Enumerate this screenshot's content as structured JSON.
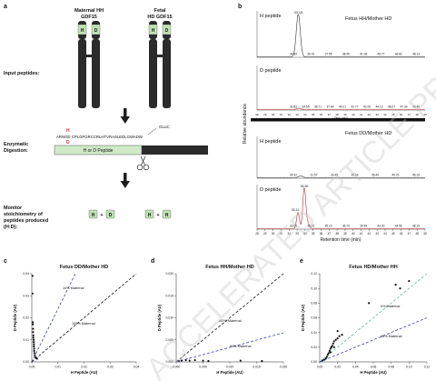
{
  "panels": {
    "a": {
      "label": "a",
      "maternal_title": [
        "Maternal HH",
        "GDF15"
      ],
      "fetal_title": [
        "Fetal",
        "HD GDF15"
      ],
      "chain_left_letters": [
        "H",
        "D"
      ],
      "chain_right_letters": [
        "H",
        "D"
      ],
      "input_label": "Input peptides:",
      "digestion_label": [
        "Enzymatic",
        "Digestion:"
      ],
      "gluc_label": "GLuC",
      "seq_marker_top": "H",
      "seq_marker_bottom": "D",
      "sequence": "ARNGD CPLGPGRCCRLHTVRASLEDLGWADW",
      "peptide_box_label": "H or D Peptide",
      "monitor_label": [
        "Monitor",
        "stoichiometry of",
        "peptides produced",
        "(H:D):"
      ],
      "badge1": [
        "H",
        "+",
        "D"
      ],
      "badge2": [
        "H",
        "+",
        "H"
      ]
    },
    "b": {
      "label": "b",
      "title_top": "Fetus HH/Mother HD",
      "title_bottom": "Fetus DD/Mother HD",
      "ylabel": "Relative abundance",
      "xlabel": "Retention time (min)",
      "trace_labels": [
        "H peptide",
        "D peptide",
        "H peptide",
        "D peptide"
      ],
      "peak_label_1": "33.15",
      "peak_label_4a": "33.90",
      "peak_label_4b": "33.12",
      "small_labels_1": [
        "34.00",
        "36.01",
        "37.55",
        "38.46",
        "41.06",
        "45.77",
        "46.82",
        "48.13"
      ],
      "small_labels_2": [
        "32.82",
        "34.55",
        "36.71",
        "37.64",
        "40.21",
        "42.77",
        "42.26",
        "44.12",
        "46.07",
        "47.34",
        "49.46"
      ],
      "small_labels_3": [
        "30.32",
        "31.57",
        "33.45",
        "35.64",
        "36.40",
        "40.31",
        "45.16"
      ],
      "small_labels_4": [
        "30.00",
        "32.21",
        "35.10",
        "36.70",
        "39.49",
        "43.20",
        "44.56",
        "48.19"
      ],
      "x_ticks": [
        "28",
        "29",
        "30",
        "31",
        "32",
        "33",
        "34",
        "35",
        "36",
        "37",
        "38",
        "39",
        "40",
        "41",
        "42",
        "43",
        "44",
        "45",
        "46",
        "47",
        "48",
        "49"
      ],
      "time_axis_unit": "Time (min)"
    },
    "c": {
      "label": "c",
      "title": "Fetus DD/Mother HD",
      "xlabel": "H Peptide (AU)",
      "ylabel": "D Peptide (AU)",
      "line_labels": [
        "10% Maternal",
        "100% Maternal"
      ]
    },
    "d": {
      "label": "d",
      "title": "Fetus HH/Mother HD",
      "xlabel": "H Peptide (AU)",
      "ylabel": "D Peptide (AU)",
      "line_labels": [
        "100% Maternal",
        "50% Maternal"
      ]
    },
    "e": {
      "label": "e",
      "title": "Fetus HD/Mother HH",
      "xlabel": "H Peptide (AU)",
      "ylabel": "D Peptide (AU)",
      "line_labels": [
        "0% Maternal",
        "50% Maternal"
      ]
    }
  },
  "watermark": "ACCELERATED ARTICLE PREVIEW",
  "chart_data": [
    {
      "type": "scatter",
      "panel": "c",
      "title": "Fetus DD/Mother HD",
      "xlabel": "H Peptide (AU)",
      "ylabel": "D Peptide (AU)",
      "xlim": [
        0,
        0.04
      ],
      "ylim": [
        0,
        0.04
      ],
      "x_ticks": [
        "0.00",
        "0.01",
        "0.02",
        "0.03",
        "0.04"
      ],
      "y_ticks": [
        "0.00",
        "0.01",
        "0.02",
        "0.03",
        "0.04"
      ],
      "points": [
        [
          0.0003,
          0.039
        ],
        [
          0.0003,
          0.031
        ],
        [
          0.0004,
          0.018
        ],
        [
          0.0004,
          0.017
        ],
        [
          0.0005,
          0.015
        ],
        [
          0.0005,
          0.0135
        ],
        [
          0.0006,
          0.012
        ],
        [
          0.0006,
          0.011
        ],
        [
          0.0007,
          0.01
        ],
        [
          0.0007,
          0.009
        ],
        [
          0.0008,
          0.008
        ],
        [
          0.0008,
          0.007
        ],
        [
          0.0009,
          0.006
        ],
        [
          0.0009,
          0.005
        ],
        [
          0.001,
          0.004
        ],
        [
          0.0012,
          0.003
        ],
        [
          0.0015,
          0.002
        ],
        [
          0.002,
          0.0015
        ]
      ],
      "lines": [
        {
          "name": "10% Maternal",
          "color": "#3b3fb0",
          "slope": 2.4
        },
        {
          "name": "100% Maternal",
          "color": "#111111",
          "slope": 1.0
        }
      ]
    },
    {
      "type": "scatter",
      "panel": "d",
      "title": "Fetus HH/Mother HD",
      "xlabel": "H Peptide (AU)",
      "ylabel": "D Peptide (AU)",
      "xlim": [
        0,
        0.02
      ],
      "ylim": [
        0,
        0.02
      ],
      "x_ticks": [
        "0.000",
        "0.005",
        "0.010",
        "0.015",
        "0.020"
      ],
      "y_ticks": [
        "0.000",
        "0.005",
        "0.010",
        "0.015",
        "0.020"
      ],
      "points": [
        [
          0.0005,
          0.0002
        ],
        [
          0.001,
          0.0003
        ],
        [
          0.0018,
          0.0004
        ],
        [
          0.0025,
          0.0003
        ],
        [
          0.0035,
          0.0004
        ],
        [
          0.005,
          0.0003
        ],
        [
          0.006,
          0.0002
        ],
        [
          0.012,
          0.0003
        ],
        [
          0.016,
          0.0002
        ]
      ],
      "lines": [
        {
          "name": "100% Maternal",
          "color": "#111111",
          "slope": 1.0
        },
        {
          "name": "50% Maternal",
          "color": "#3b3fb0",
          "slope": 0.33
        }
      ]
    },
    {
      "type": "scatter",
      "panel": "e",
      "title": "Fetus HD/Mother HH",
      "xlabel": "H Peptide (AU)",
      "ylabel": "D Peptide (AU)",
      "xlim": [
        0,
        0.12
      ],
      "ylim": [
        0,
        0.12
      ],
      "x_ticks": [
        "0.00",
        "0.02",
        "0.04",
        "0.06",
        "0.08",
        "0.10",
        "0.12"
      ],
      "y_ticks": [
        "0.00",
        "0.02",
        "0.04",
        "0.06",
        "0.08",
        "0.10",
        "0.12"
      ],
      "points": [
        [
          0.003,
          0.002
        ],
        [
          0.005,
          0.003
        ],
        [
          0.007,
          0.005
        ],
        [
          0.008,
          0.007
        ],
        [
          0.009,
          0.01
        ],
        [
          0.01,
          0.012
        ],
        [
          0.011,
          0.015
        ],
        [
          0.012,
          0.018
        ],
        [
          0.013,
          0.02
        ],
        [
          0.014,
          0.022
        ],
        [
          0.015,
          0.025
        ],
        [
          0.016,
          0.028
        ],
        [
          0.018,
          0.03
        ],
        [
          0.02,
          0.032
        ],
        [
          0.022,
          0.035
        ],
        [
          0.025,
          0.037
        ],
        [
          0.02,
          0.042
        ],
        [
          0.055,
          0.08
        ],
        [
          0.09,
          0.1
        ],
        [
          0.085,
          0.105
        ],
        [
          0.1,
          0.11
        ],
        [
          0.016,
          0.02
        ],
        [
          0.012,
          0.013
        ]
      ],
      "lines": [
        {
          "name": "0% Maternal",
          "color": "#5fb8a8",
          "slope": 1.0
        },
        {
          "name": "50% Maternal",
          "color": "#3b3fb0",
          "slope": 0.5
        }
      ]
    },
    {
      "type": "line",
      "panel": "b",
      "title": "Fetus HH/Mother HD",
      "xlabel": "Retention time (min)",
      "ylabel": "Relative abundance",
      "xlim": [
        28,
        49
      ],
      "series": [
        {
          "name": "H peptide",
          "peaks": [
            {
              "x": 33.15,
              "y": 100,
              "width": 0.35
            }
          ]
        },
        {
          "name": "D peptide",
          "peaks": [
            {
              "x": 33.2,
              "y": 3,
              "width": 0.4
            }
          ]
        }
      ]
    },
    {
      "type": "line",
      "panel": "b",
      "title": "Fetus DD/Mother HD",
      "xlabel": "Retention time (min)",
      "ylabel": "Relative abundance",
      "xlim": [
        28,
        49
      ],
      "series": [
        {
          "name": "H peptide",
          "peaks": [
            {
              "x": 33.45,
              "y": 5,
              "width": 0.4
            }
          ]
        },
        {
          "name": "D peptide",
          "peaks": [
            {
              "x": 33.9,
              "y": 100,
              "width": 0.25
            },
            {
              "x": 33.12,
              "y": 40,
              "width": 0.25
            },
            {
              "x": 34.3,
              "y": 15,
              "width": 0.3
            }
          ]
        }
      ]
    }
  ]
}
